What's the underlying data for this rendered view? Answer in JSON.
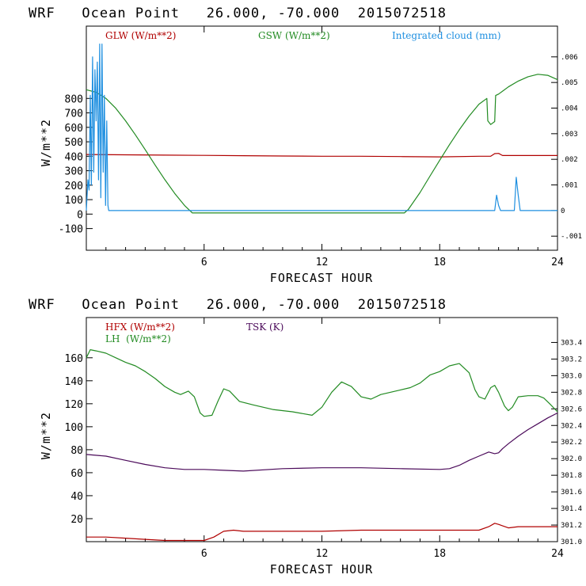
{
  "chart_data": [
    {
      "type": "line",
      "title": "WRF   Ocean Point   26.000, -70.000  2015072518",
      "xlabel": "FORECAST HOUR",
      "ylabel": "W/m**2",
      "xlim": [
        0,
        24
      ],
      "ylim": [
        -250,
        1300
      ],
      "xticks": [
        6,
        12,
        18,
        24
      ],
      "yticks": [
        -100,
        0,
        100,
        200,
        300,
        400,
        500,
        600,
        700,
        800
      ],
      "y2lim": [
        -0.00155,
        0.0072
      ],
      "y2ticks": [
        -0.001,
        0,
        0.001,
        0.002,
        0.003,
        0.004,
        0.005,
        0.006
      ],
      "y2ticklabels": [
        "-.001",
        "0",
        ".001",
        ".002",
        ".003",
        ".004",
        ".005",
        ".006"
      ],
      "series": [
        {
          "name": "GLW (W/m**2)",
          "color": "#b00000",
          "axis": "left",
          "x": [
            0,
            2,
            4,
            6,
            8,
            10,
            12,
            14,
            16,
            18,
            20,
            20.6,
            20.8,
            21.0,
            21.2,
            22,
            24
          ],
          "y": [
            412,
            410,
            408,
            406,
            404,
            402,
            400,
            400,
            398,
            396,
            400,
            400,
            418,
            420,
            405,
            405,
            405
          ]
        },
        {
          "name": "GSW (W/m**2)",
          "color": "#228b22",
          "axis": "left",
          "x": [
            0,
            0.5,
            1,
            1.5,
            2,
            2.5,
            3,
            3.5,
            4,
            4.5,
            5,
            5.4,
            16.2,
            16.4,
            17,
            17.5,
            18,
            18.5,
            19,
            19.5,
            20,
            20.4,
            20.45,
            20.6,
            20.8,
            20.85,
            21.0,
            21.5,
            22,
            22.5,
            23,
            23.5,
            24
          ],
          "y": [
            860,
            842,
            800,
            732,
            645,
            548,
            445,
            340,
            238,
            143,
            60,
            8,
            8,
            32,
            150,
            262,
            373,
            480,
            583,
            678,
            760,
            800,
            645,
            620,
            640,
            820,
            830,
            880,
            920,
            950,
            967,
            960,
            930
          ]
        },
        {
          "name": "Integrated cloud (mm)",
          "color": "#1e8fe0",
          "axis": "right",
          "x": [
            0,
            0.08,
            0.14,
            0.2,
            0.26,
            0.32,
            0.38,
            0.44,
            0.5,
            0.56,
            0.62,
            0.68,
            0.74,
            0.8,
            0.86,
            0.92,
            0.98,
            1.04,
            1.1,
            1.14,
            1.2,
            1.3,
            2,
            4,
            6,
            8,
            10,
            12,
            14,
            16,
            18,
            20,
            20.8,
            20.9,
            21.0,
            21.1,
            21.3,
            21.8,
            21.9,
            22.0,
            22.1,
            22.3,
            24
          ],
          "y": [
            0,
            0.0012,
            0.0008,
            0.0045,
            0.001,
            0.006,
            0.0015,
            0.0055,
            0.0035,
            0.0058,
            0.0012,
            0.0065,
            0.0005,
            0.0065,
            0.0015,
            0.0045,
            0.0002,
            0.0035,
            0.0002,
            0,
            0,
            0,
            0,
            0,
            0,
            0,
            0,
            0,
            0,
            0,
            0,
            0,
            0,
            0.0006,
            0.0002,
            0,
            0,
            0,
            0.0013,
            0.0006,
            0,
            0,
            0
          ]
        }
      ]
    },
    {
      "type": "line",
      "title": "WRF   Ocean Point   26.000, -70.000  2015072518",
      "xlabel": "FORECAST HOUR",
      "ylabel": "W/m**2",
      "xlim": [
        0,
        24
      ],
      "ylim": [
        0,
        195
      ],
      "xticks": [
        6,
        12,
        18,
        24
      ],
      "yticks": [
        20,
        40,
        60,
        80,
        100,
        120,
        140,
        160
      ],
      "y2lim": [
        301.0,
        303.7
      ],
      "y2ticks": [
        301.0,
        301.2,
        301.4,
        301.6,
        301.8,
        302.0,
        302.2,
        302.4,
        302.6,
        302.8,
        303.0,
        303.2,
        303.4
      ],
      "y2ticklabels": [
        "301.0",
        "301.2",
        "301.4",
        "301.6",
        "301.8",
        "302.0",
        "302.2",
        "302.4",
        "302.6",
        "302.8",
        "303.0",
        "303.2",
        "303.4"
      ],
      "series": [
        {
          "name": "HFX (W/m**2)",
          "color": "#b00000",
          "axis": "left",
          "x": [
            0,
            1,
            2,
            3,
            4,
            5,
            6,
            6.5,
            7,
            7.5,
            8,
            10,
            12,
            14,
            16,
            18,
            19,
            20,
            20.5,
            20.8,
            21,
            21.5,
            22,
            23,
            24
          ],
          "y": [
            4,
            4,
            3,
            2,
            1,
            1,
            1,
            4,
            9,
            10,
            9,
            9,
            9,
            10,
            10,
            10,
            10,
            10,
            13,
            16,
            15,
            12,
            13,
            13,
            13
          ]
        },
        {
          "name": "LH  (W/m**2)",
          "color": "#228b22",
          "axis": "left",
          "x": [
            0,
            0.2,
            0.5,
            1,
            1.5,
            2,
            2.5,
            3,
            3.5,
            4,
            4.5,
            4.8,
            5.2,
            5.5,
            5.8,
            6,
            6.4,
            6.7,
            7,
            7.3,
            7.8,
            8.5,
            9.5,
            10.5,
            11.5,
            12,
            12.5,
            13,
            13.5,
            14,
            14.5,
            15,
            16,
            16.5,
            17,
            17.5,
            18,
            18.5,
            19,
            19.5,
            19.8,
            20,
            20.3,
            20.6,
            20.8,
            21,
            21.3,
            21.5,
            21.7,
            22,
            22.5,
            23,
            23.3,
            23.6,
            24
          ],
          "y": [
            160,
            167,
            166,
            164,
            160,
            156,
            153,
            148,
            142,
            135,
            130,
            128,
            131,
            126,
            112,
            109,
            110,
            122,
            133,
            131,
            122,
            119,
            115,
            113,
            110,
            117,
            130,
            139,
            135,
            126,
            124,
            128,
            132,
            134,
            138,
            145,
            148,
            153,
            155,
            147,
            132,
            126,
            124,
            134,
            136,
            130,
            118,
            114,
            117,
            126,
            127,
            127,
            125,
            120,
            113
          ]
        },
        {
          "name": "TSK (K)",
          "color": "#4b0a5a",
          "axis": "right",
          "x": [
            0,
            1,
            2,
            3,
            4,
            5,
            6,
            7,
            8,
            10,
            12,
            14,
            16,
            18,
            18.5,
            19,
            19.5,
            20,
            20.5,
            20.8,
            21,
            21.2,
            21.5,
            22,
            22.5,
            23,
            23.5,
            24
          ],
          "y": [
            302.05,
            302.03,
            301.98,
            301.93,
            301.89,
            301.87,
            301.87,
            301.86,
            301.85,
            301.88,
            301.89,
            301.89,
            301.88,
            301.87,
            301.88,
            301.92,
            301.98,
            302.03,
            302.08,
            302.06,
            302.07,
            302.12,
            302.18,
            302.27,
            302.35,
            302.42,
            302.49,
            302.55
          ]
        }
      ]
    }
  ]
}
